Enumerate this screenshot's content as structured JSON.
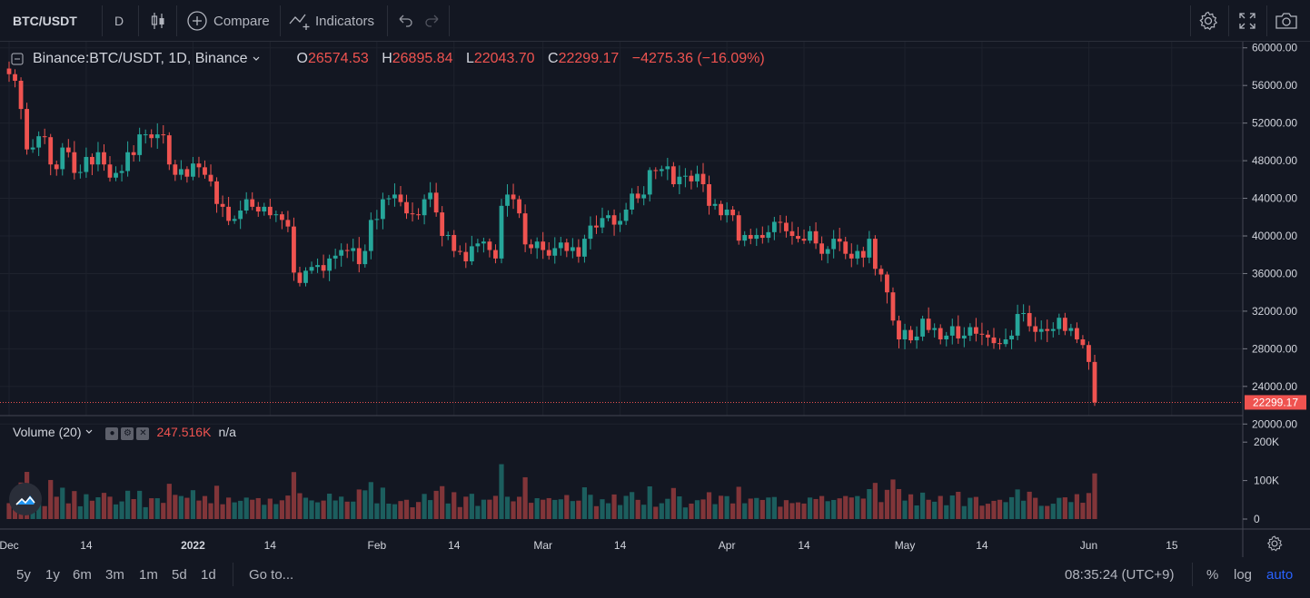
{
  "toolbar": {
    "symbol": "BTC/USDT",
    "interval": "D",
    "compare_label": "Compare",
    "indicators_label": "Indicators"
  },
  "legend": {
    "symbol_full": "Binance:BTC/USDT, 1D, Binance",
    "open_label": "O",
    "open": "26574.53",
    "high_label": "H",
    "high": "26895.84",
    "low_label": "L",
    "low": "22043.70",
    "close_label": "C",
    "close": "22299.17",
    "change": "−4275.36 (−16.09%)"
  },
  "volume_legend": {
    "label": "Volume (20)",
    "value": "247.516K",
    "ma": "n/a"
  },
  "bottom": {
    "ranges": [
      "5y",
      "1y",
      "6m",
      "3m",
      "1m",
      "5d",
      "1d"
    ],
    "goto": "Go to...",
    "clock": "08:35:24 (UTC+9)",
    "percent": "%",
    "log": "log",
    "auto": "auto"
  },
  "colors": {
    "up": "#26a69a",
    "down": "#ef5350",
    "background": "#131722",
    "grid": "#1e222d",
    "accent": "#2962ff"
  },
  "icons": {
    "candles": "candlestick-icon",
    "compare": "plus-circle-icon",
    "indicators": "indicators-icon",
    "undo": "undo-icon",
    "redo": "redo-icon",
    "settings": "gear-icon",
    "fullscreen": "fullscreen-icon",
    "snapshot": "camera-icon"
  },
  "chart_data": [
    {
      "type": "candlestick",
      "x_ticks": [
        "Dec",
        "14",
        "2022",
        "14",
        "Feb",
        "14",
        "Mar",
        "14",
        "Apr",
        "14",
        "May",
        "14",
        "Jun",
        "15"
      ],
      "y_ticks": [
        "20000.00",
        "24000.00",
        "28000.00",
        "32000.00",
        "36000.00",
        "40000.00",
        "44000.00",
        "48000.00",
        "52000.00",
        "56000.00",
        "60000.00"
      ],
      "ylim": [
        18000,
        62000
      ],
      "last_price_label": "22299.17",
      "x_start": "2021-12-01",
      "closes": [
        57200,
        56500,
        53500,
        49200,
        49400,
        50600,
        50500,
        47600,
        47100,
        49400,
        48900,
        46700,
        46800,
        48400,
        47600,
        48900,
        47600,
        46200,
        46700,
        46900,
        48900,
        48600,
        50800,
        50800,
        50400,
        50800,
        50700,
        47600,
        46500,
        47100,
        46300,
        47700,
        47300,
        46500,
        45800,
        43400,
        43100,
        41600,
        41800,
        42700,
        43900,
        43100,
        42600,
        43100,
        42200,
        42300,
        41700,
        41000,
        36100,
        35000,
        36300,
        36700,
        36900,
        36300,
        37600,
        37900,
        38500,
        38400,
        38700,
        37000,
        38400,
        41700,
        41800,
        43900,
        44000,
        44400,
        43600,
        42400,
        42300,
        42200,
        43900,
        44600,
        42500,
        40000,
        40100,
        38400,
        38300,
        37300,
        38900,
        39200,
        39400,
        38500,
        37600,
        43200,
        44400,
        43900,
        42400,
        39100,
        38700,
        39400,
        38500,
        37900,
        38700,
        39300,
        38400,
        38800,
        37800,
        39700,
        41100,
        40900,
        41900,
        42200,
        41200,
        41600,
        42800,
        44500,
        44000,
        44400,
        47000,
        46900,
        47100,
        47400,
        45500,
        46300,
        46400,
        45800,
        46600,
        45500,
        43200,
        43400,
        42200,
        42800,
        42200,
        39500,
        40100,
        39700,
        40100,
        39800,
        40400,
        41500,
        41400,
        40500,
        40000,
        39700,
        39500,
        40500,
        39200,
        38100,
        38600,
        39700,
        39400,
        38100,
        37600,
        38400,
        37700,
        39700,
        36500,
        35900,
        34000,
        31000,
        29000,
        30000,
        28900,
        29300,
        31200,
        30000,
        30200,
        29000,
        29400,
        30400,
        29100,
        29400,
        30300,
        29600,
        29500,
        29200,
        28600,
        28500,
        29000,
        29400,
        31700,
        31800,
        30400,
        29800,
        30100,
        29900,
        30100,
        31300,
        29900,
        30200,
        29000,
        28400,
        26600,
        22299
      ]
    },
    {
      "type": "bar",
      "title": "Volume (20)",
      "y_ticks": [
        "0",
        "100K",
        "200K"
      ],
      "ylim": [
        0,
        250000
      ]
    }
  ]
}
